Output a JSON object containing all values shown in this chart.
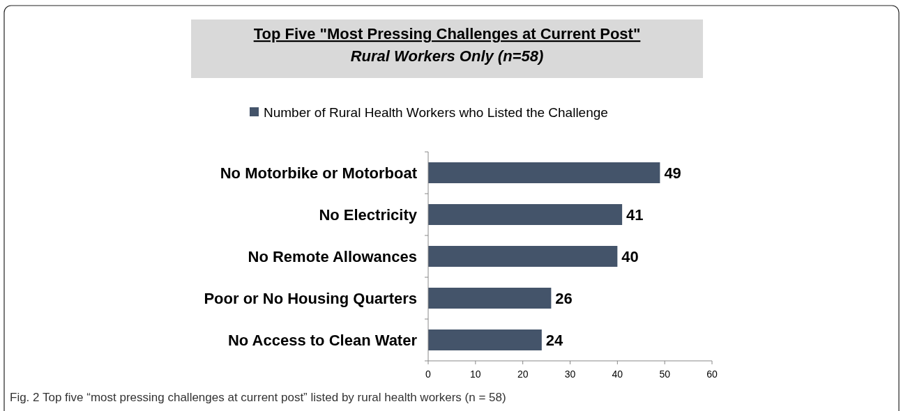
{
  "chart_data": {
    "type": "bar",
    "orientation": "horizontal",
    "title": "Top Five \"Most Pressing Challenges at Current Post\"",
    "subtitle": "Rural Workers Only (n=58)",
    "categories": [
      "No Motorbike or Motorboat",
      "No Electricity",
      "No Remote Allowances",
      "Poor or No Housing Quarters",
      "No Access to Clean Water"
    ],
    "series": [
      {
        "name": "Number of Rural Health Workers who Listed the Challenge",
        "color": "#44546a",
        "values": [
          49,
          41,
          40,
          26,
          24
        ]
      }
    ],
    "xlim": [
      0,
      60
    ],
    "xticks": [
      0,
      10,
      20,
      30,
      40,
      50,
      60
    ],
    "grid": false,
    "legend": "top",
    "data_labels": true,
    "annotations": [
      "Fig. 2 Top five “most pressing challenges at current post” listed by rural health workers (n = 58)"
    ]
  }
}
